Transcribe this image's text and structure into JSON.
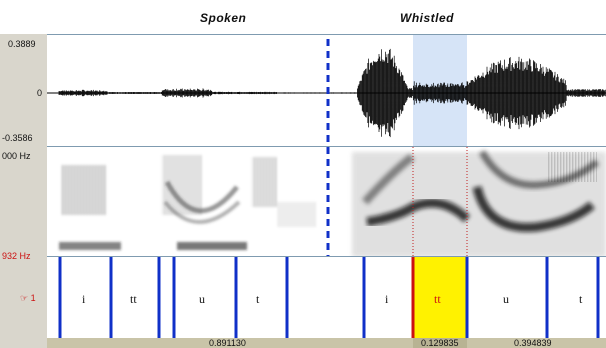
{
  "headers": {
    "spoken": "Spoken",
    "whistled": "Whistled"
  },
  "waveform": {
    "y_max": "0.3889",
    "y_zero": "0",
    "y_min": "-0.3586"
  },
  "spectrogram": {
    "freq_top": "000 Hz",
    "freq_bottom": "932 Hz"
  },
  "tier": {
    "name": "☞ 1",
    "segments": [
      "i",
      "tt",
      "u",
      "t",
      "i",
      "tt",
      "u",
      "t"
    ],
    "highlight_segment_index": 5
  },
  "durations": {
    "left": "0.891130",
    "selected": "0.129835",
    "right": "0.394839"
  },
  "colors": {
    "selection_fill": "#d6e4f7",
    "interval_highlight": "#fff200",
    "boundary": "#1030c8",
    "cursor": "#1030c8",
    "red_label": "#cc1111"
  }
}
